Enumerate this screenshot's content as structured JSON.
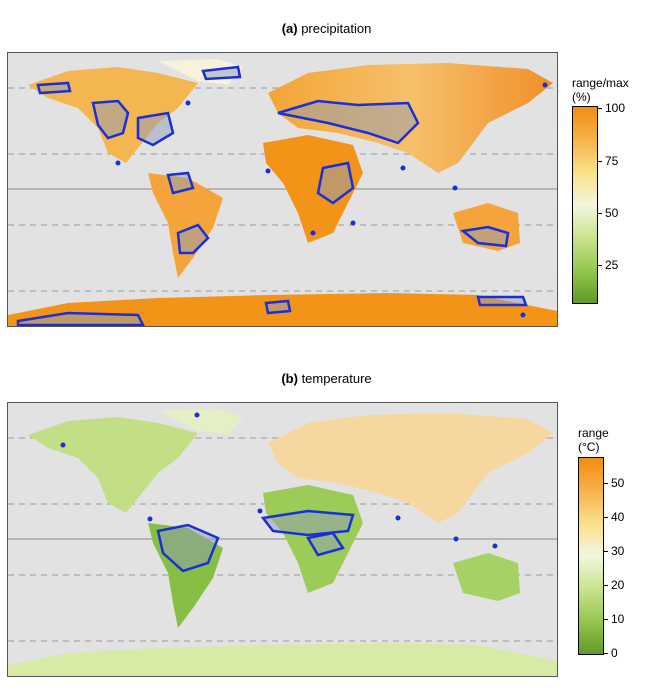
{
  "panel_a": {
    "tag": "(a)",
    "title": "precipitation",
    "legend": {
      "title_line1": "range/max",
      "title_line2": "(%)",
      "ticks": [
        "100",
        "75",
        "50",
        "25"
      ],
      "gradient": [
        "#f28c12",
        "#f7b24a",
        "#fbe08a",
        "#f3f6dd",
        "#c9e38e",
        "#94c74f",
        "#5f9a25"
      ]
    }
  },
  "panel_b": {
    "tag": "(b)",
    "title": "temperature",
    "legend": {
      "title_line1": "range",
      "title_line2": "(°C)",
      "ticks": [
        "50",
        "40",
        "30",
        "20",
        "10",
        "0"
      ],
      "gradient": [
        "#f28c12",
        "#f7b24a",
        "#fbe08a",
        "#f3f6dd",
        "#c9e38e",
        "#94c74f",
        "#5f9a25"
      ]
    }
  },
  "colors": {
    "ocean": "#e2e2e2",
    "contour": "#1a2fd6",
    "ice": "#f39419"
  }
}
